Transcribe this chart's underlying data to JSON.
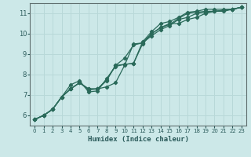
{
  "xlabel": "Humidex (Indice chaleur)",
  "xlim": [
    -0.5,
    23.5
  ],
  "ylim": [
    5.5,
    11.5
  ],
  "xticks": [
    0,
    1,
    2,
    3,
    4,
    5,
    6,
    7,
    8,
    9,
    10,
    11,
    12,
    13,
    14,
    15,
    16,
    17,
    18,
    19,
    20,
    21,
    22,
    23
  ],
  "yticks": [
    6,
    7,
    8,
    9,
    10,
    11
  ],
  "background_color": "#cce8e8",
  "grid_color": "#b8d8d8",
  "line_color": "#2a6a5a",
  "lines": [
    [
      5.8,
      6.0,
      6.3,
      6.9,
      7.3,
      7.6,
      7.3,
      7.3,
      7.4,
      7.6,
      8.45,
      9.5,
      9.55,
      10.0,
      10.3,
      10.5,
      10.5,
      10.7,
      10.8,
      11.0,
      11.1,
      11.1,
      11.2,
      11.3
    ],
    [
      5.8,
      6.0,
      6.3,
      6.9,
      7.5,
      7.7,
      7.15,
      7.2,
      7.8,
      8.4,
      8.5,
      8.55,
      9.6,
      10.1,
      10.5,
      10.6,
      10.8,
      11.05,
      11.1,
      11.2,
      11.2,
      11.2,
      11.2,
      11.3
    ],
    [
      5.8,
      6.0,
      6.3,
      6.9,
      7.3,
      7.6,
      7.25,
      7.3,
      7.75,
      8.45,
      8.5,
      8.55,
      9.5,
      10.0,
      10.3,
      10.45,
      10.75,
      11.0,
      11.05,
      11.1,
      11.1,
      11.15,
      11.2,
      11.3
    ],
    [
      5.8,
      6.0,
      6.3,
      6.9,
      7.3,
      7.6,
      7.3,
      7.3,
      7.7,
      8.45,
      8.8,
      9.45,
      9.55,
      9.9,
      10.2,
      10.4,
      10.7,
      10.8,
      11.0,
      11.05,
      11.1,
      11.15,
      11.2,
      11.3
    ]
  ]
}
